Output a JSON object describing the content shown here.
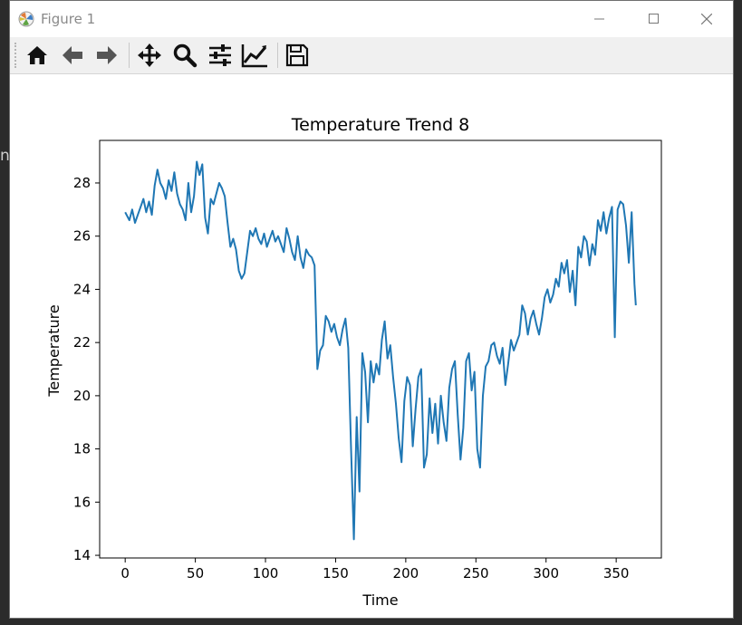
{
  "window": {
    "title": "Figure 1"
  },
  "toolbar": {
    "buttons": [
      {
        "icon": "home-icon"
      },
      {
        "icon": "back-arrow-icon"
      },
      {
        "icon": "forward-arrow-icon"
      },
      {
        "icon": "pan-icon"
      },
      {
        "icon": "zoom-icon"
      },
      {
        "icon": "configure-subplots-icon"
      },
      {
        "icon": "edit-axis-icon"
      },
      {
        "icon": "save-icon"
      }
    ]
  },
  "background_fragment": "n",
  "chart_data": {
    "type": "line",
    "title": "Temperature Trend 8",
    "xlabel": "Time",
    "ylabel": "Temperature",
    "xlim": [
      -18.2,
      382.2
    ],
    "ylim": [
      13.9,
      29.6
    ],
    "xticks": [
      0,
      50,
      100,
      150,
      200,
      250,
      300,
      350
    ],
    "yticks": [
      14,
      16,
      18,
      20,
      22,
      24,
      26,
      28
    ],
    "grid": false,
    "line_color": "#1f77b4",
    "series": [
      {
        "x": [
          0,
          3,
          5,
          7,
          9,
          11,
          13,
          15,
          17,
          19,
          21,
          23,
          25,
          27,
          29,
          31,
          33,
          35,
          37,
          39,
          41,
          43,
          45,
          47,
          49,
          51,
          53,
          55,
          57,
          59,
          61,
          63,
          65,
          67,
          69,
          71,
          73,
          75,
          77,
          79,
          81,
          83,
          85,
          87,
          89,
          91,
          93,
          95,
          97,
          99,
          101,
          103,
          105,
          107,
          109,
          111,
          113,
          115,
          117,
          119,
          121,
          123,
          125,
          127,
          129,
          131,
          133,
          135,
          137,
          139,
          141,
          143,
          145,
          147,
          149,
          151,
          153,
          155,
          157,
          159,
          161,
          163,
          165,
          167,
          169,
          171,
          173,
          175,
          177,
          179,
          181,
          183,
          185,
          187,
          189,
          191,
          193,
          195,
          197,
          199,
          201,
          203,
          205,
          207,
          209,
          211,
          213,
          215,
          217,
          219,
          221,
          223,
          225,
          227,
          229,
          231,
          233,
          235,
          237,
          239,
          241,
          243,
          245,
          247,
          249,
          251,
          253,
          255,
          257,
          259,
          261,
          263,
          265,
          267,
          269,
          271,
          273,
          275,
          277,
          279,
          281,
          283,
          285,
          287,
          289,
          291,
          293,
          295,
          297,
          299,
          301,
          303,
          305,
          307,
          309,
          311,
          313,
          315,
          317,
          319,
          321,
          323,
          325,
          327,
          329,
          331,
          333,
          335,
          337,
          339,
          341,
          343,
          345,
          347,
          349,
          351,
          353,
          355,
          357,
          359,
          361,
          363,
          364
        ],
        "y": [
          26.9,
          26.6,
          27.0,
          26.5,
          26.8,
          27.1,
          27.4,
          26.9,
          27.3,
          26.8,
          27.9,
          28.5,
          28.0,
          27.8,
          27.4,
          28.1,
          27.7,
          28.4,
          27.6,
          27.2,
          27.0,
          26.6,
          28.0,
          26.9,
          27.5,
          28.8,
          28.3,
          28.7,
          26.7,
          26.1,
          27.4,
          27.2,
          27.6,
          28.0,
          27.8,
          27.5,
          26.5,
          25.6,
          25.9,
          25.5,
          24.7,
          24.4,
          24.6,
          25.4,
          26.2,
          26.0,
          26.3,
          25.9,
          25.7,
          26.1,
          25.6,
          25.9,
          26.2,
          25.8,
          26.0,
          25.7,
          25.4,
          26.3,
          25.9,
          25.4,
          25.1,
          26.0,
          25.2,
          24.8,
          25.5,
          25.3,
          25.2,
          24.9,
          21.0,
          21.7,
          21.9,
          23.0,
          22.8,
          22.4,
          22.7,
          22.2,
          21.9,
          22.5,
          22.9,
          21.8,
          18.0,
          14.6,
          19.2,
          16.4,
          21.6,
          20.9,
          19.0,
          21.3,
          20.5,
          21.2,
          20.8,
          22.1,
          22.8,
          21.4,
          21.9,
          20.7,
          19.7,
          18.4,
          17.5,
          19.8,
          20.7,
          20.4,
          18.1,
          19.5,
          20.7,
          21.0,
          17.3,
          17.8,
          19.9,
          18.6,
          19.7,
          18.2,
          20.0,
          19.0,
          18.3,
          20.3,
          21.0,
          21.3,
          19.3,
          17.6,
          18.8,
          21.3,
          21.6,
          20.2,
          20.9,
          18.0,
          17.3,
          20.0,
          21.1,
          21.3,
          21.9,
          22.0,
          21.5,
          21.2,
          21.8,
          20.4,
          21.2,
          22.1,
          21.7,
          22.0,
          22.3,
          23.4,
          23.1,
          22.3,
          22.9,
          23.2,
          22.7,
          22.3,
          22.9,
          23.7,
          24.0,
          23.5,
          23.8,
          24.4,
          24.1,
          25.0,
          24.6,
          25.1,
          23.9,
          24.7,
          23.4,
          25.6,
          25.2,
          26.0,
          25.8,
          24.9,
          25.7,
          25.3,
          26.6,
          26.2,
          26.9,
          26.1,
          26.7,
          27.1,
          22.2,
          27.0,
          27.3,
          27.2,
          26.4,
          25.0,
          26.9,
          24.2,
          23.4
        ]
      }
    ]
  }
}
